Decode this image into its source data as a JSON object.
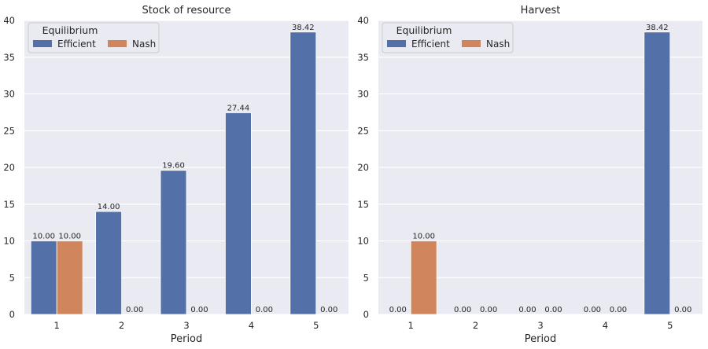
{
  "colors": {
    "efficient": "#5470a8",
    "nash": "#d0855c"
  },
  "chart_data": [
    {
      "type": "bar",
      "title": "Stock of resource",
      "xlabel": "Period",
      "ylabel": "",
      "categories": [
        "1",
        "2",
        "3",
        "4",
        "5"
      ],
      "ylim": [
        0,
        40
      ],
      "yticks": [
        "0",
        "5",
        "10",
        "15",
        "20",
        "25",
        "30",
        "35",
        "40"
      ],
      "grid": true,
      "legend": {
        "title": "Equilibrium",
        "placement": "top-left",
        "entries": [
          "Efficient",
          "Nash"
        ]
      },
      "series": [
        {
          "name": "Efficient",
          "values": [
            10.0,
            14.0,
            19.6,
            27.44,
            38.42
          ],
          "labels": [
            "10.00",
            "14.00",
            "19.60",
            "27.44",
            "38.42"
          ]
        },
        {
          "name": "Nash",
          "values": [
            10.0,
            0.0,
            0.0,
            0.0,
            0.0
          ],
          "labels": [
            "10.00",
            "0.00",
            "0.00",
            "0.00",
            "0.00"
          ]
        }
      ]
    },
    {
      "type": "bar",
      "title": "Harvest",
      "xlabel": "Period",
      "ylabel": "",
      "categories": [
        "1",
        "2",
        "3",
        "4",
        "5"
      ],
      "ylim": [
        0,
        40
      ],
      "yticks": [
        "0",
        "5",
        "10",
        "15",
        "20",
        "25",
        "30",
        "35",
        "40"
      ],
      "grid": true,
      "legend": {
        "title": "Equilibrium",
        "placement": "top-left",
        "entries": [
          "Efficient",
          "Nash"
        ]
      },
      "series": [
        {
          "name": "Efficient",
          "values": [
            0.0,
            0.0,
            0.0,
            0.0,
            38.42
          ],
          "labels": [
            "0.00",
            "0.00",
            "0.00",
            "0.00",
            "38.42"
          ]
        },
        {
          "name": "Nash",
          "values": [
            10.0,
            0.0,
            0.0,
            0.0,
            0.0
          ],
          "labels": [
            "10.00",
            "0.00",
            "0.00",
            "0.00",
            "0.00"
          ]
        }
      ]
    }
  ]
}
